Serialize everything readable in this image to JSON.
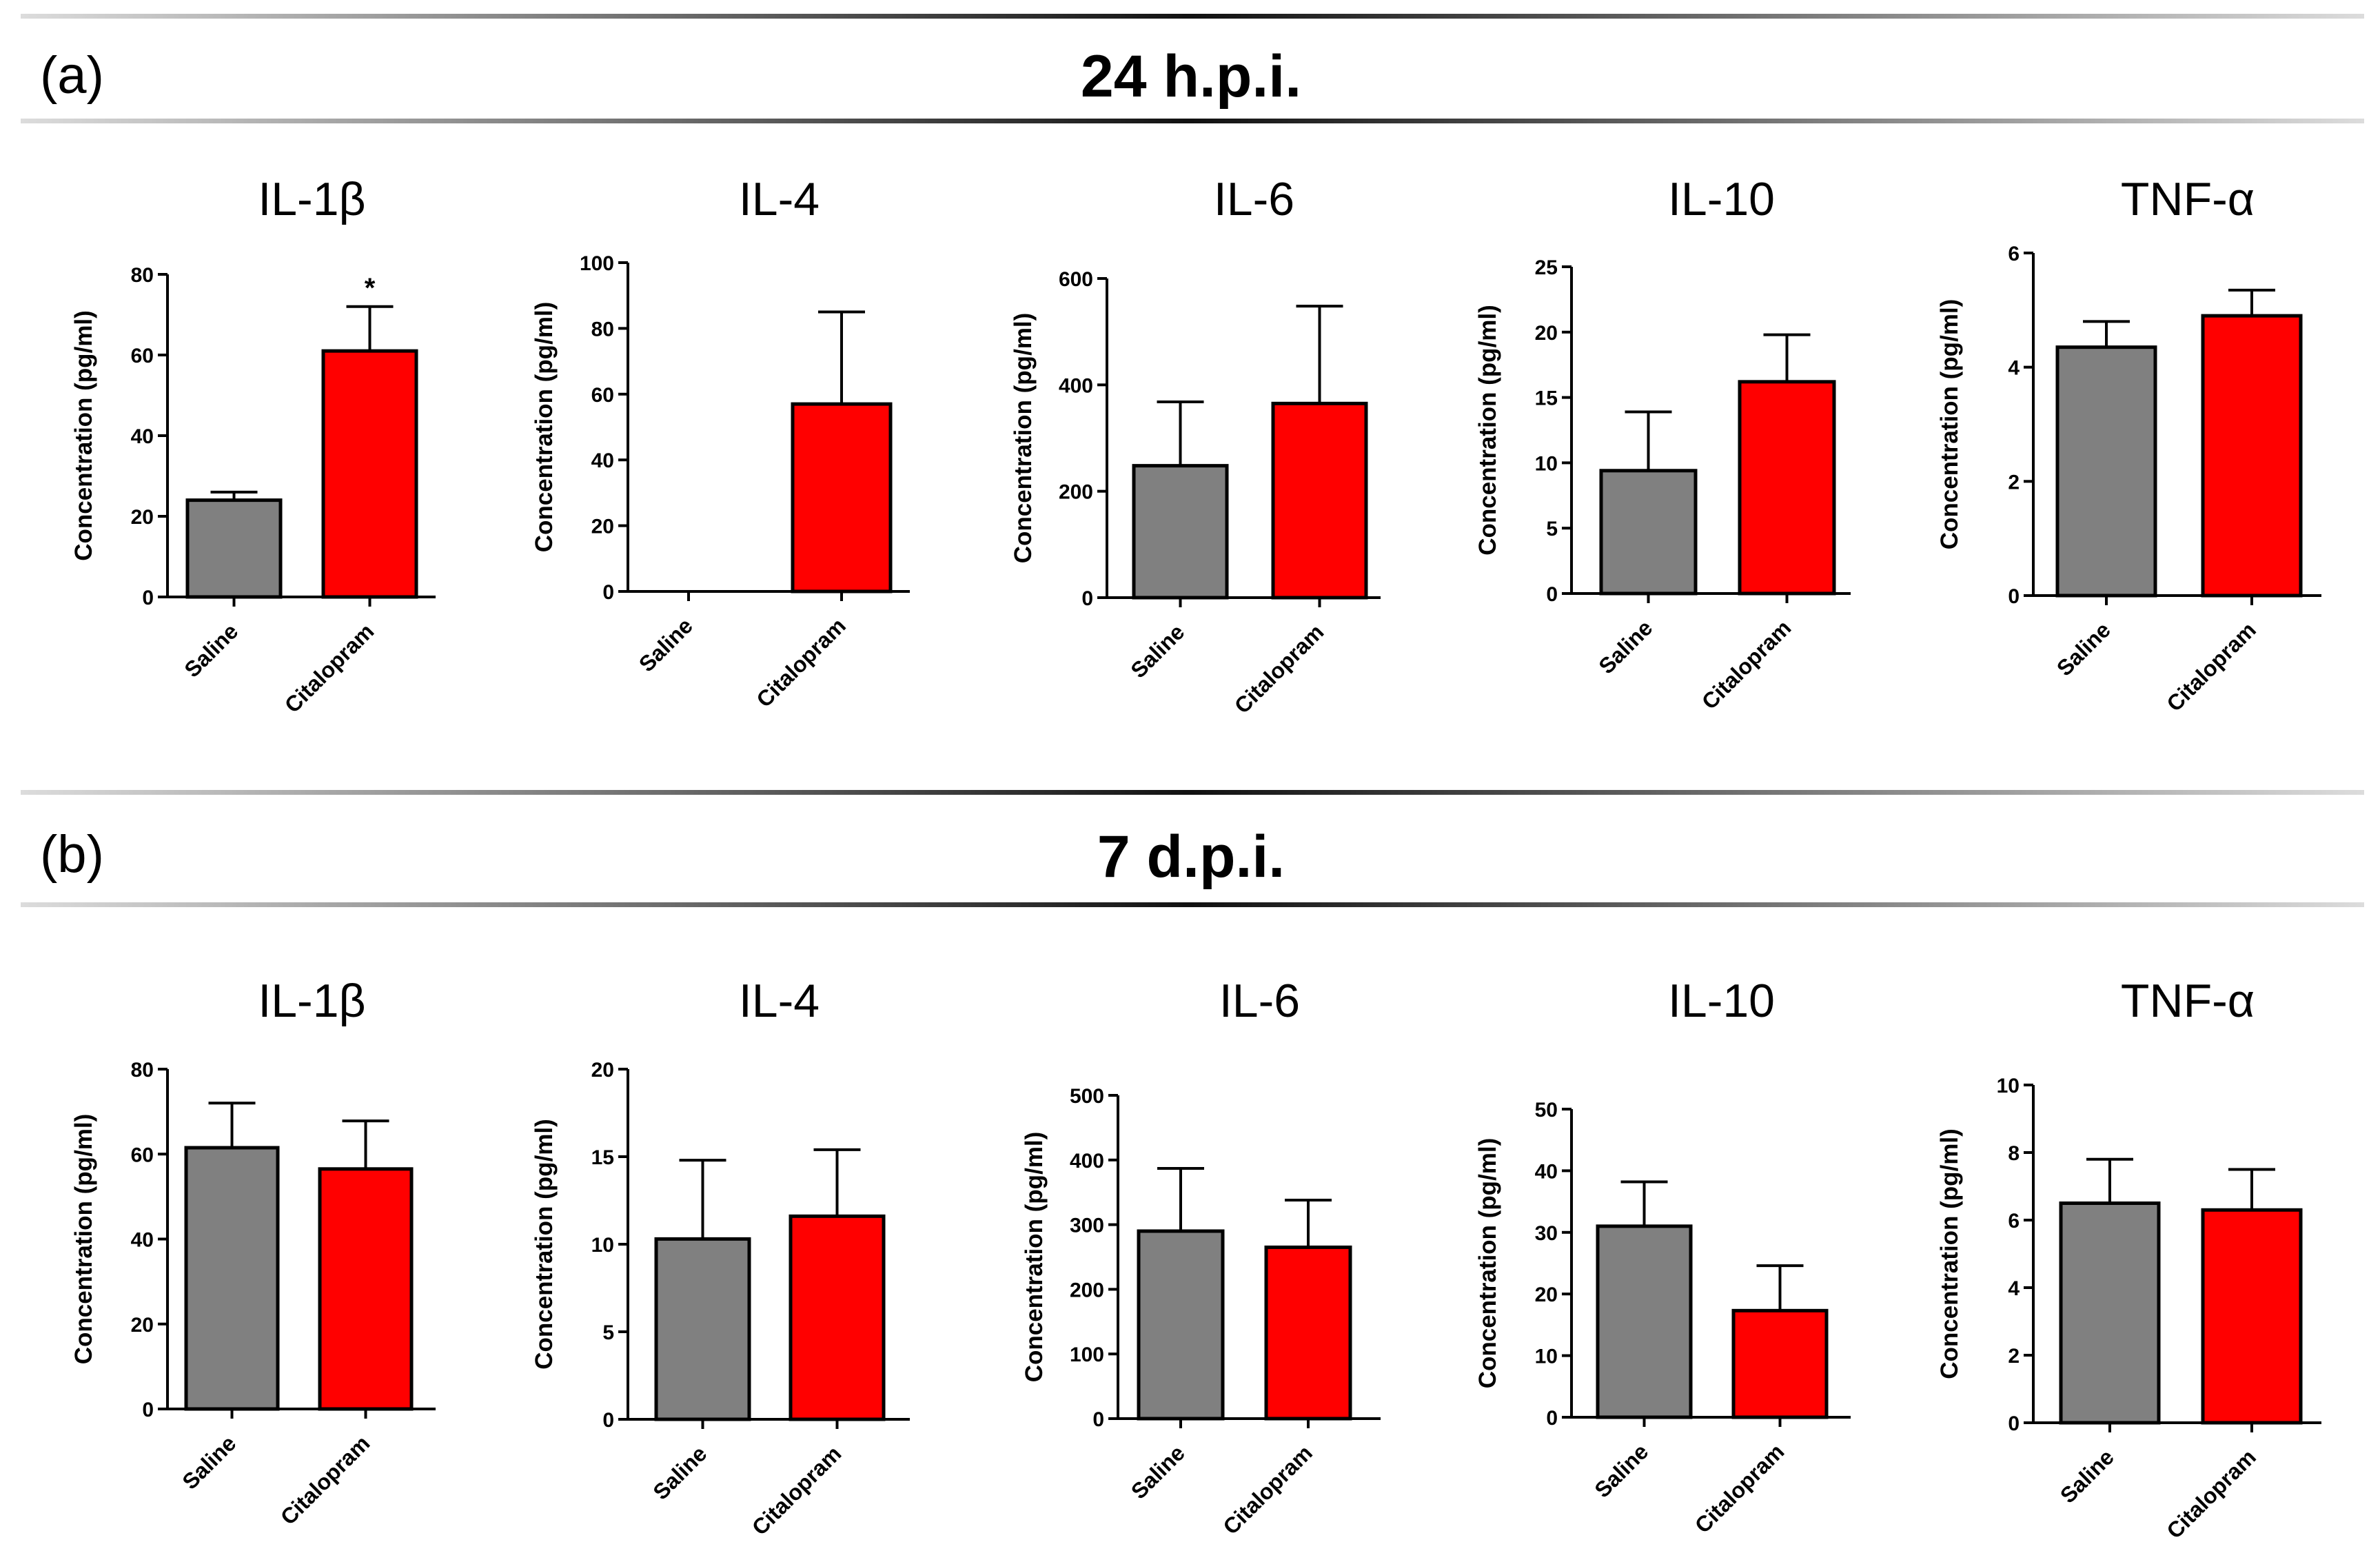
{
  "figure": {
    "colors": {
      "saline": "#808080",
      "citalopram": "#ff0000",
      "divider_dark": "#111111",
      "divider_light": "#d8d8d8"
    },
    "sections": [
      {
        "panel_label": "(a)",
        "title": "24 h.p.i."
      },
      {
        "panel_label": "(b)",
        "title": "7 d.p.i."
      }
    ]
  },
  "chart_data": [
    {
      "type": "bar",
      "section": "24 h.p.i.",
      "title": "IL-1β",
      "ylabel": "Concentration (pg/ml)",
      "categories": [
        "Saline",
        "Citalopram"
      ],
      "values": [
        24,
        61
      ],
      "errors": [
        2,
        11
      ],
      "ylim": [
        0,
        80
      ],
      "yticks": [
        0,
        20,
        40,
        60,
        80
      ],
      "annotations": [
        {
          "category": "Citalopram",
          "text": "*"
        }
      ]
    },
    {
      "type": "bar",
      "section": "24 h.p.i.",
      "title": "IL-4",
      "ylabel": "Concentration (pg/ml)",
      "categories": [
        "Saline",
        "Citalopram"
      ],
      "values": [
        0,
        57
      ],
      "errors": [
        0,
        28
      ],
      "ylim": [
        0,
        100
      ],
      "yticks": [
        0,
        20,
        40,
        60,
        80,
        100
      ],
      "annotations": []
    },
    {
      "type": "bar",
      "section": "24 h.p.i.",
      "title": "IL-6",
      "ylabel": "Concentration (pg/ml)",
      "categories": [
        "Saline",
        "Citalopram"
      ],
      "values": [
        248,
        365
      ],
      "errors": [
        120,
        183
      ],
      "ylim": [
        0,
        600
      ],
      "yticks": [
        0,
        200,
        400,
        600
      ],
      "annotations": []
    },
    {
      "type": "bar",
      "section": "24 h.p.i.",
      "title": "IL-10",
      "ylabel": "Concentration (pg/ml)",
      "categories": [
        "Saline",
        "Citalopram"
      ],
      "values": [
        9.4,
        16.2
      ],
      "errors": [
        4.5,
        3.6
      ],
      "ylim": [
        0,
        25
      ],
      "yticks": [
        0,
        5,
        10,
        15,
        20,
        25
      ],
      "annotations": []
    },
    {
      "type": "bar",
      "section": "24 h.p.i.",
      "title": "TNF-α",
      "ylabel": "Concentration (pg/ml)",
      "categories": [
        "Saline",
        "Citalopram"
      ],
      "values": [
        4.35,
        4.9
      ],
      "errors": [
        0.45,
        0.45
      ],
      "ylim": [
        0,
        6
      ],
      "yticks": [
        0,
        2,
        4,
        6
      ],
      "annotations": []
    },
    {
      "type": "bar",
      "section": "7 d.p.i.",
      "title": "IL-1β",
      "ylabel": "Concentration (pg/ml)",
      "categories": [
        "Saline",
        "Citalopram"
      ],
      "values": [
        61.5,
        56.5
      ],
      "errors": [
        10.5,
        11.3
      ],
      "ylim": [
        0,
        80
      ],
      "yticks": [
        0,
        20,
        40,
        60,
        80
      ],
      "annotations": []
    },
    {
      "type": "bar",
      "section": "7 d.p.i.",
      "title": "IL-4",
      "ylabel": "Concentration (pg/ml)",
      "categories": [
        "Saline",
        "Citalopram"
      ],
      "values": [
        10.3,
        11.6
      ],
      "errors": [
        4.5,
        3.8
      ],
      "ylim": [
        0,
        20
      ],
      "yticks": [
        0,
        5,
        10,
        15,
        20
      ],
      "annotations": []
    },
    {
      "type": "bar",
      "section": "7 d.p.i.",
      "title": "IL-6",
      "ylabel": "Concentration (pg/ml)",
      "categories": [
        "Saline",
        "Citalopram"
      ],
      "values": [
        290,
        265
      ],
      "errors": [
        97,
        73
      ],
      "ylim": [
        0,
        500
      ],
      "yticks": [
        0,
        100,
        200,
        300,
        400,
        500
      ],
      "annotations": []
    },
    {
      "type": "bar",
      "section": "7 d.p.i.",
      "title": "IL-10",
      "ylabel": "Concentration (pg/ml)",
      "categories": [
        "Saline",
        "Citalopram"
      ],
      "values": [
        31,
        17.3
      ],
      "errors": [
        7.2,
        7.3
      ],
      "ylim": [
        0,
        50
      ],
      "yticks": [
        0,
        10,
        20,
        30,
        40,
        50
      ],
      "annotations": []
    },
    {
      "type": "bar",
      "section": "7 d.p.i.",
      "title": "TNF-α",
      "ylabel": "Concentration (pg/ml)",
      "categories": [
        "Saline",
        "Citalopram"
      ],
      "values": [
        6.5,
        6.3
      ],
      "errors": [
        1.3,
        1.2
      ],
      "ylim": [
        0,
        10
      ],
      "yticks": [
        0,
        2,
        4,
        6,
        8,
        10
      ],
      "annotations": []
    }
  ]
}
